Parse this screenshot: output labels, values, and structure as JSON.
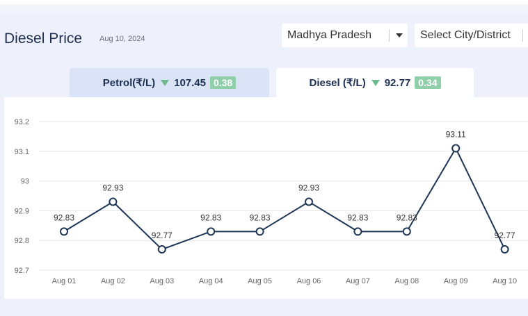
{
  "header": {
    "title": "Diesel Price",
    "date": "Aug 10, 2024"
  },
  "filters": {
    "state": "Madhya Pradesh",
    "city_placeholder": "Select City/District"
  },
  "tabs": [
    {
      "label": "Petrol(₹/L)",
      "price": "107.45",
      "change": "0.38",
      "direction": "down"
    },
    {
      "label": "Diesel (₹/L)",
      "price": "92.77",
      "change": "0.34",
      "direction": "down"
    }
  ],
  "colors": {
    "line": "#1c3557",
    "badge": "#8fcfa9",
    "arrow": "#6fb98f",
    "active_tab": "#ffffff",
    "inactive_tab": "#dbe4f6"
  },
  "chart_data": {
    "type": "line",
    "categories": [
      "Aug 01",
      "Aug 02",
      "Aug 03",
      "Aug 04",
      "Aug 05",
      "Aug 06",
      "Aug 07",
      "Aug 08",
      "Aug 09",
      "Aug 10"
    ],
    "series": [
      {
        "values": [
          92.83,
          92.93,
          92.77,
          92.83,
          92.83,
          92.93,
          92.83,
          92.83,
          93.11,
          92.77
        ]
      }
    ],
    "data_labels": [
      "92.83",
      "92.93",
      "92.77",
      "92.83",
      "92.83",
      "92.93",
      "92.83",
      "92.83",
      "93.11",
      "92.77"
    ],
    "yticks": [
      "92.7",
      "92.8",
      "92.9",
      "93",
      "93.1",
      "93.2"
    ],
    "ylim": [
      92.7,
      93.2
    ],
    "grid": true,
    "title": "",
    "xlabel": "",
    "ylabel": ""
  }
}
